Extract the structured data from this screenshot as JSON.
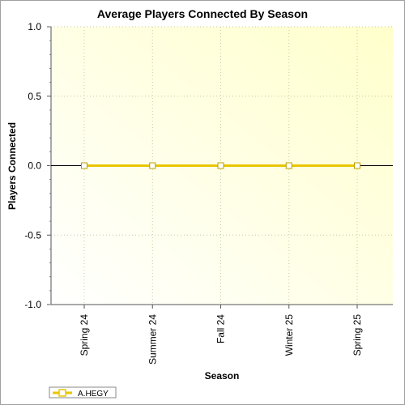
{
  "chart_data": {
    "type": "line",
    "title": "Average Players Connected By Season",
    "xlabel": "Season",
    "ylabel": "Players Connected",
    "categories": [
      "Spring 24",
      "Summer 24",
      "Fall 24",
      "Winter 25",
      "Spring 25"
    ],
    "series": [
      {
        "name": "A.HEGY",
        "color": "#e8c600",
        "values": [
          0,
          0,
          0,
          0,
          0
        ]
      }
    ],
    "ylim": [
      -1.0,
      1.0
    ],
    "yticks": [
      "1.0",
      "0.5",
      "0.0",
      "-0.5",
      "-1.0"
    ],
    "grid": true,
    "legend": "bottom-left"
  }
}
